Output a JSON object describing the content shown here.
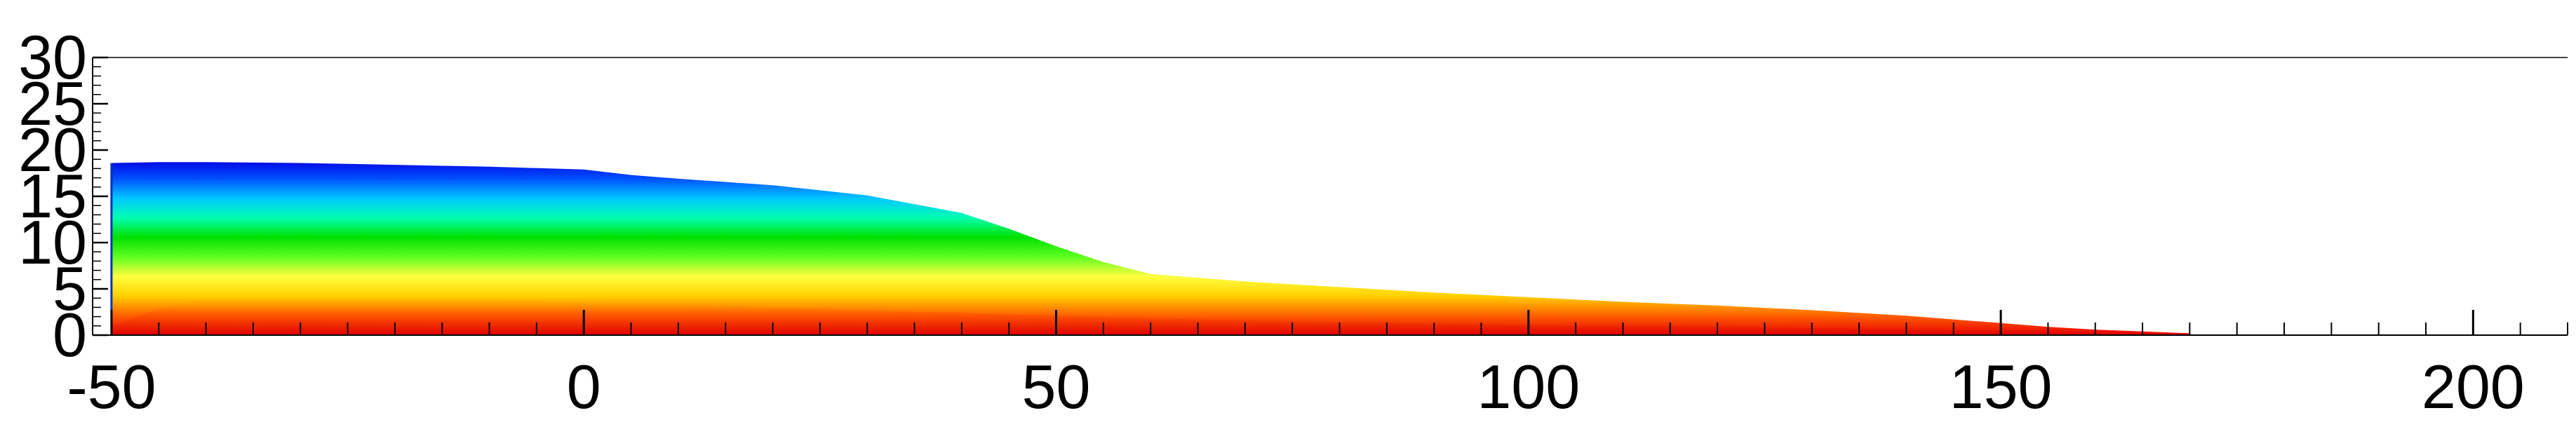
{
  "chart_data": {
    "type": "area",
    "title": "",
    "xlabel": "",
    "ylabel": "",
    "xlim": [
      -52,
      210
    ],
    "ylim": [
      0,
      30
    ],
    "x_ticks": [
      {
        "value": -50,
        "label": "-50"
      },
      {
        "value": 0,
        "label": "0"
      },
      {
        "value": 50,
        "label": "50"
      },
      {
        "value": 100,
        "label": "100"
      },
      {
        "value": 150,
        "label": "150"
      },
      {
        "value": 200,
        "label": "200"
      }
    ],
    "y_ticks": [
      {
        "value": 0,
        "label": "0"
      },
      {
        "value": 5,
        "label": "5"
      },
      {
        "value": 10,
        "label": "10"
      },
      {
        "value": 15,
        "label": "15"
      },
      {
        "value": 20,
        "label": "20"
      },
      {
        "value": 25,
        "label": "25"
      },
      {
        "value": 30,
        "label": "30"
      }
    ],
    "colormap": [
      "#e60000",
      "#ff6000",
      "#ffd000",
      "#ffff40",
      "#60ff20",
      "#00e000",
      "#00ffb0",
      "#00c8ff",
      "#0050ff",
      "#0000e0"
    ],
    "top_boundary": {
      "x": [
        -50,
        -45,
        -40,
        -30,
        -20,
        -10,
        0,
        5,
        10,
        20,
        30,
        40,
        45,
        50,
        55,
        60,
        70,
        80,
        90,
        100,
        110,
        120,
        130,
        140,
        145,
        150,
        155,
        160,
        165,
        170
      ],
      "y": [
        18.6,
        18.7,
        18.7,
        18.6,
        18.4,
        18.2,
        17.9,
        17.3,
        16.9,
        16.2,
        15.1,
        13.2,
        11.5,
        9.6,
        7.9,
        6.6,
        5.8,
        5.2,
        4.6,
        4.1,
        3.6,
        3.2,
        2.7,
        2.1,
        1.7,
        1.3,
        0.9,
        0.6,
        0.4,
        0.2
      ]
    },
    "hot_band": {
      "x": [
        -50,
        -45,
        -40,
        -30,
        -20,
        -10,
        0,
        10,
        20,
        30,
        40,
        50,
        60,
        70,
        80,
        100,
        120,
        140,
        160,
        170
      ],
      "y": [
        1.0,
        2.9,
        4.0,
        4.2,
        4.1,
        3.9,
        3.6,
        3.3,
        3.0,
        2.7,
        2.4,
        2.1,
        1.8,
        1.6,
        1.4,
        1.1,
        0.9,
        0.6,
        0.3,
        0.1
      ]
    },
    "grid": false,
    "legend": "none"
  }
}
